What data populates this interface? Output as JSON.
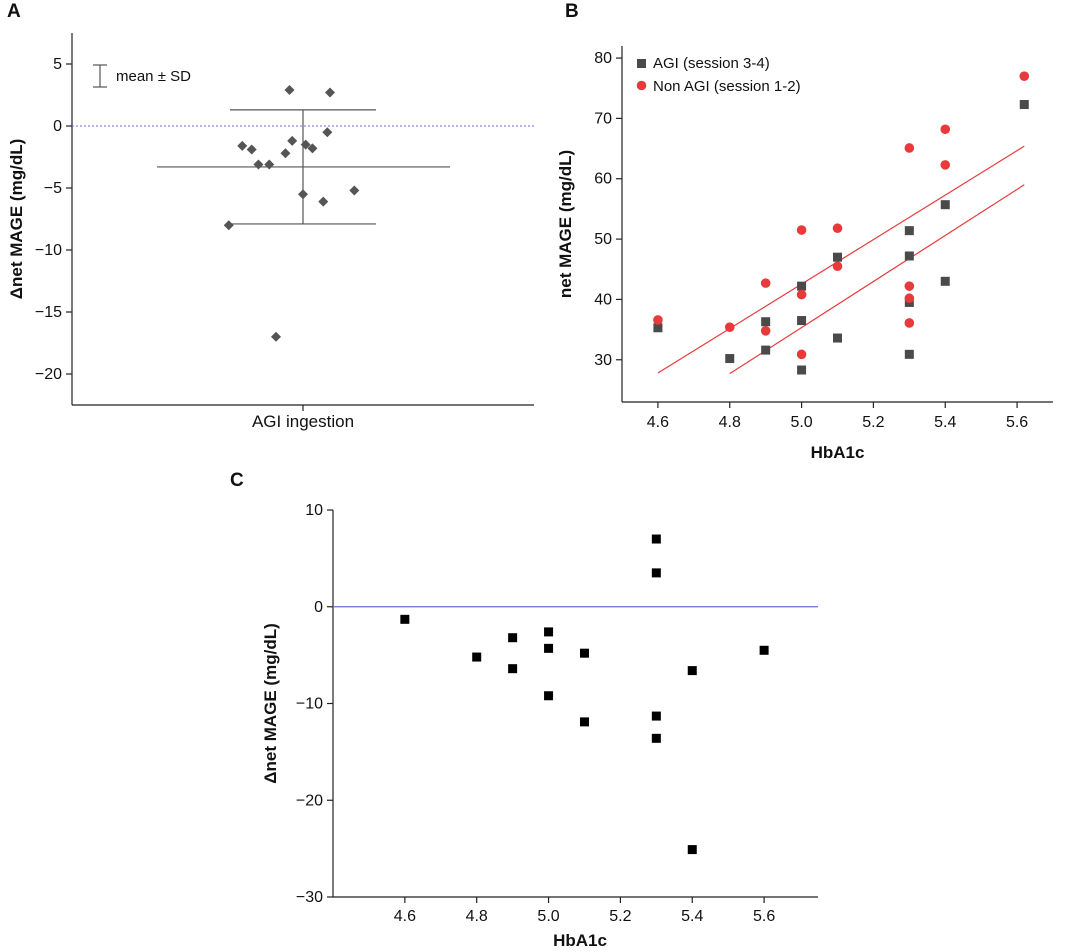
{
  "colors": {
    "axis": "#222222",
    "diamond": "#555555",
    "agi_square": "#4a4a4a",
    "non_agi_circle": "#e8393b",
    "fit_line": "#e8393b",
    "zero_line": "#6b6bdb",
    "c_square": "#000000",
    "error_bar": "#555555"
  },
  "chart_data": [
    {
      "panel": "A",
      "type": "scatter",
      "ylabel": "Δnet MAGE (mg/dL)",
      "xlabel": "AGI ingestion",
      "ylim": [
        -22.5,
        7.5
      ],
      "yticks": [
        5,
        0,
        -5,
        -10,
        -15,
        -20
      ],
      "ytick_labels": [
        "5",
        "0",
        "−5",
        "−10",
        "−15",
        "−20"
      ],
      "reference_line_y": 0,
      "legend": "mean ± SD",
      "mean": -3.3,
      "sd": 4.6,
      "points": [
        {
          "jitter": -0.1,
          "y": 2.9
        },
        {
          "jitter": 0.2,
          "y": 2.7
        },
        {
          "jitter": 0.18,
          "y": -0.5
        },
        {
          "jitter": -0.45,
          "y": -1.6
        },
        {
          "jitter": -0.38,
          "y": -1.9
        },
        {
          "jitter": -0.08,
          "y": -1.2
        },
        {
          "jitter": 0.02,
          "y": -1.5
        },
        {
          "jitter": 0.07,
          "y": -1.8
        },
        {
          "jitter": -0.13,
          "y": -2.2
        },
        {
          "jitter": -0.33,
          "y": -3.1
        },
        {
          "jitter": -0.25,
          "y": -3.1
        },
        {
          "jitter": 0.0,
          "y": -5.5
        },
        {
          "jitter": 0.38,
          "y": -5.2
        },
        {
          "jitter": 0.15,
          "y": -6.1
        },
        {
          "jitter": -0.55,
          "y": -8.0
        },
        {
          "jitter": -0.2,
          "y": -17.0
        }
      ]
    },
    {
      "panel": "B",
      "type": "scatter",
      "xlabel": "HbA1c",
      "ylabel": "net MAGE (mg/dL)",
      "xlim": [
        4.5,
        5.7
      ],
      "ylim": [
        23,
        82
      ],
      "xticks": [
        4.6,
        4.8,
        5.0,
        5.2,
        5.4,
        5.6
      ],
      "xtick_labels": [
        "4.6",
        "4.8",
        "5.0",
        "5.2",
        "5.4",
        "5.6"
      ],
      "yticks": [
        30,
        40,
        50,
        60,
        70,
        80
      ],
      "ytick_labels": [
        "30",
        "40",
        "50",
        "60",
        "70",
        "80"
      ],
      "series": [
        {
          "name": "AGI (session 3-4)",
          "marker": "square",
          "points": [
            [
              4.6,
              35.3
            ],
            [
              4.8,
              30.2
            ],
            [
              4.9,
              36.3
            ],
            [
              4.9,
              31.6
            ],
            [
              5.0,
              42.2
            ],
            [
              5.0,
              36.5
            ],
            [
              5.0,
              28.3
            ],
            [
              5.1,
              47.0
            ],
            [
              5.1,
              33.6
            ],
            [
              5.3,
              51.4
            ],
            [
              5.3,
              47.2
            ],
            [
              5.3,
              39.5
            ],
            [
              5.3,
              30.9
            ],
            [
              5.4,
              55.7
            ],
            [
              5.4,
              43.0
            ],
            [
              5.62,
              72.3
            ]
          ],
          "fit": [
            [
              4.8,
              27.7
            ],
            [
              5.62,
              59.0
            ]
          ]
        },
        {
          "name": "Non AGI (session 1-2)",
          "marker": "circle",
          "points": [
            [
              4.6,
              36.6
            ],
            [
              4.8,
              35.4
            ],
            [
              4.9,
              42.7
            ],
            [
              4.9,
              34.8
            ],
            [
              5.0,
              51.5
            ],
            [
              5.0,
              40.8
            ],
            [
              5.0,
              30.9
            ],
            [
              5.1,
              51.8
            ],
            [
              5.1,
              45.5
            ],
            [
              5.3,
              65.1
            ],
            [
              5.3,
              42.2
            ],
            [
              5.3,
              40.2
            ],
            [
              5.3,
              36.1
            ],
            [
              5.4,
              68.2
            ],
            [
              5.4,
              62.3
            ],
            [
              5.62,
              77.0
            ]
          ],
          "fit": [
            [
              4.6,
              27.8
            ],
            [
              5.62,
              65.4
            ]
          ]
        }
      ]
    },
    {
      "panel": "C",
      "type": "scatter",
      "xlabel": "HbA1c",
      "ylabel": "Δnet MAGE (mg/dL)",
      "xlim": [
        4.4,
        5.75
      ],
      "ylim": [
        -30,
        10
      ],
      "xticks": [
        4.6,
        4.8,
        5.0,
        5.2,
        5.4,
        5.6
      ],
      "xtick_labels": [
        "4.6",
        "4.8",
        "5.0",
        "5.2",
        "5.4",
        "5.6"
      ],
      "yticks": [
        10,
        0,
        -10,
        -20,
        -30
      ],
      "ytick_labels": [
        "10",
        "0",
        "−10",
        "−20",
        "−30"
      ],
      "reference_line_y": 0,
      "points": [
        [
          4.6,
          -1.3
        ],
        [
          4.8,
          -5.2
        ],
        [
          4.9,
          -3.2
        ],
        [
          4.9,
          -6.4
        ],
        [
          5.0,
          -2.6
        ],
        [
          5.0,
          -4.3
        ],
        [
          5.0,
          -9.2
        ],
        [
          5.1,
          -4.8
        ],
        [
          5.1,
          -11.9
        ],
        [
          5.3,
          7.0
        ],
        [
          5.3,
          3.5
        ],
        [
          5.3,
          -11.3
        ],
        [
          5.3,
          -13.6
        ],
        [
          5.4,
          -6.6
        ],
        [
          5.4,
          -25.1
        ],
        [
          5.6,
          -4.5
        ]
      ]
    }
  ]
}
